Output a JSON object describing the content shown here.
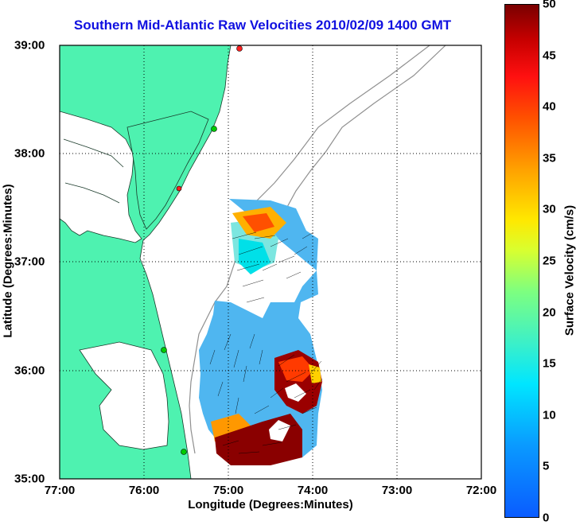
{
  "title": "Southern Mid-Atlantic Raw Velocities 2010/02/09 1400 GMT",
  "xlabel": "Longitude (Degrees:Minutes)",
  "ylabel": "Latitude (Degrees:Minutes)",
  "xticks": [
    "77:00",
    "76:00",
    "75:00",
    "74:00",
    "73:00",
    "72:00"
  ],
  "yticks": [
    "39:00",
    "38:00",
    "37:00",
    "36:00",
    "35:00"
  ],
  "colorbar": {
    "label": "Surface Velocity (cm/s)",
    "ticks": [
      "50",
      "45",
      "40",
      "35",
      "30",
      "25",
      "20",
      "15",
      "10",
      "5",
      "0"
    ]
  },
  "colors": {
    "land": "#4ef2b0",
    "title": "#1010e0",
    "station_green": "#00cc00",
    "station_red": "#ff2020"
  },
  "chart_data": {
    "type": "heatmap",
    "title": "Southern Mid-Atlantic Raw Velocities 2010/02/09 1400 GMT",
    "xlabel": "Longitude (Degrees:Minutes)",
    "ylabel": "Latitude (Degrees:Minutes)",
    "xlim": [
      "77:00",
      "72:00"
    ],
    "ylim": [
      "35:00",
      "39:00"
    ],
    "grid": true,
    "colorbar_range": [
      0,
      50
    ],
    "colorbar_units": "cm/s"
  }
}
